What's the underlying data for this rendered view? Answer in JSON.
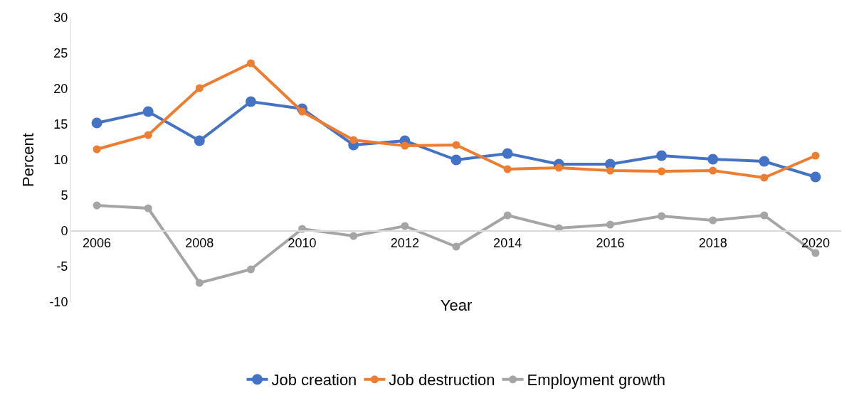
{
  "chart_data": {
    "type": "line",
    "xlabel": "Year",
    "ylabel": "Percent",
    "x": [
      2006,
      2007,
      2008,
      2009,
      2010,
      2011,
      2012,
      2013,
      2014,
      2015,
      2016,
      2017,
      2018,
      2019,
      2020
    ],
    "series": [
      {
        "name": "Job creation",
        "color": "#4472c4",
        "values": [
          15.2,
          16.8,
          12.7,
          18.2,
          17.2,
          12.1,
          12.7,
          10.0,
          10.9,
          9.4,
          9.4,
          10.6,
          10.1,
          9.8,
          7.6
        ]
      },
      {
        "name": "Job destruction",
        "color": "#ed7d31",
        "values": [
          11.5,
          13.5,
          20.1,
          23.6,
          16.8,
          12.8,
          12.0,
          12.1,
          8.7,
          8.9,
          8.5,
          8.4,
          8.5,
          7.5,
          10.6
        ]
      },
      {
        "name": "Employment growth",
        "color": "#a5a5a5",
        "values": [
          3.6,
          3.2,
          -7.3,
          -5.4,
          0.3,
          -0.7,
          0.7,
          -2.2,
          2.2,
          0.4,
          0.9,
          2.1,
          1.5,
          2.2,
          -3.1
        ]
      }
    ],
    "xlim": [
      2005.5,
      2020.5
    ],
    "xticks": [
      2006,
      2008,
      2010,
      2012,
      2014,
      2016,
      2018,
      2020
    ],
    "ylim": [
      -10,
      30
    ],
    "yticks": [
      -10,
      -5,
      0,
      5,
      10,
      15,
      20,
      25,
      30
    ],
    "legend": "bottom",
    "marker": "circle",
    "line_style": "solid"
  }
}
